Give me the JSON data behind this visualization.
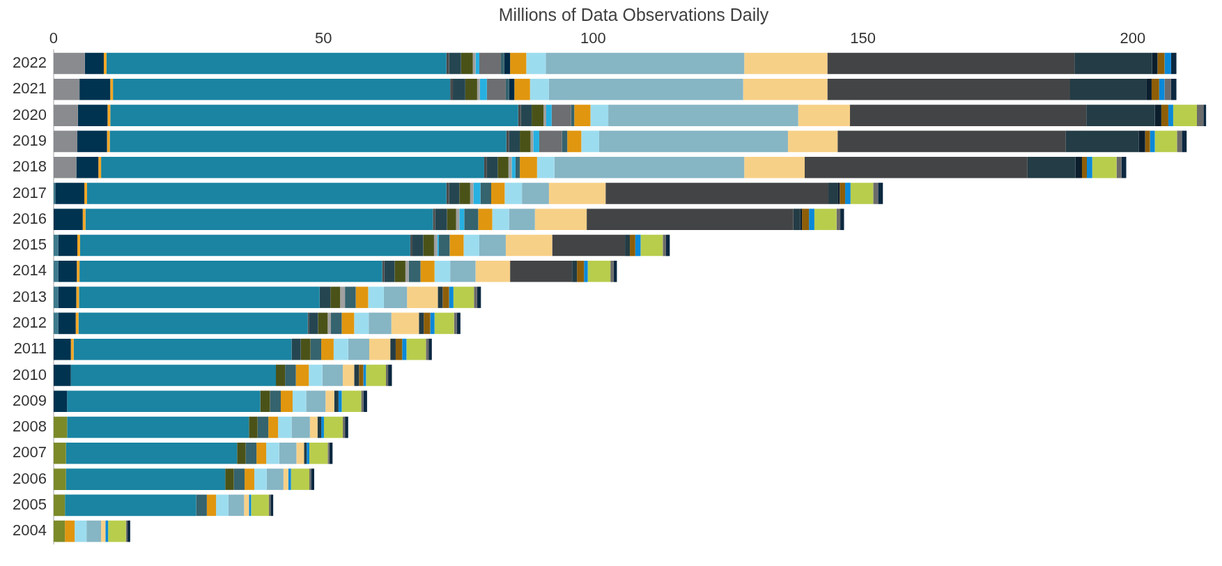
{
  "chart_data": {
    "type": "bar",
    "orientation": "horizontal",
    "stacked": true,
    "grid": false,
    "xlabel": "Millions of Data Observations Daily",
    "categories": [
      "2022",
      "2021",
      "2020",
      "2019",
      "2018",
      "2017",
      "2016",
      "2015",
      "2014",
      "2013",
      "2012",
      "2011",
      "2010",
      "2009",
      "2008",
      "2007",
      "2006",
      "2005",
      "2004"
    ],
    "xlim": [
      0,
      215
    ],
    "xticks": [
      0,
      50,
      100,
      150,
      200
    ],
    "series": [
      {
        "color": "#3f7a8c",
        "values": [
          null,
          null,
          null,
          null,
          null,
          0.3,
          null,
          0.9,
          0.9,
          0.9,
          0.9,
          null,
          null,
          null,
          null,
          null,
          null,
          null,
          null
        ]
      },
      {
        "color": "#7c8a2a",
        "values": [
          null,
          null,
          null,
          null,
          null,
          null,
          null,
          null,
          null,
          null,
          null,
          null,
          null,
          null,
          2.5,
          2.3,
          2.3,
          2.1,
          2.1
        ]
      },
      {
        "color": "#8a8b8f",
        "values": [
          5.8,
          4.8,
          4.5,
          4.4,
          4.2,
          null,
          null,
          null,
          null,
          null,
          null,
          null,
          null,
          null,
          null,
          null,
          null,
          null,
          null
        ]
      },
      {
        "color": "#003350",
        "values": [
          3.5,
          5.7,
          5.5,
          5.5,
          4.1,
          5.4,
          5.4,
          3.5,
          3.4,
          3.3,
          3.2,
          3.2,
          3.2,
          2.5,
          null,
          null,
          null,
          null,
          null
        ]
      },
      {
        "color": "#f5a623",
        "values": [
          0.5,
          0.5,
          0.5,
          0.5,
          0.5,
          0.5,
          0.5,
          0.5,
          0.5,
          0.5,
          0.5,
          0.5,
          null,
          null,
          null,
          null,
          null,
          null,
          null
        ]
      },
      {
        "color": "#1a84a2",
        "values": [
          63,
          62.5,
          75.6,
          73.5,
          71,
          66.6,
          64.4,
          61.2,
          56.1,
          44.6,
          42.5,
          40.4,
          38,
          35.8,
          33.7,
          31.7,
          29.5,
          24.3,
          null
        ]
      },
      {
        "color": "#4a4a4a",
        "values": [
          0.5,
          0.5,
          0.5,
          0.5,
          0.5,
          0.5,
          0.4,
          0.4,
          0.4,
          null,
          0.2,
          null,
          null,
          null,
          null,
          null,
          null,
          null,
          null
        ]
      },
      {
        "color": "#254651",
        "values": [
          2.2,
          2.3,
          2,
          2,
          2,
          1.9,
          2.2,
          2,
          1.9,
          2,
          1.7,
          1.7,
          null,
          null,
          null,
          null,
          null,
          null,
          null
        ]
      },
      {
        "color": "#4a5218",
        "values": [
          2.2,
          2.2,
          2.2,
          2,
          2,
          2,
          1.7,
          2,
          2,
          1.8,
          1.8,
          1.8,
          1.7,
          1.8,
          1.6,
          1.6,
          1.6,
          null,
          null
        ]
      },
      {
        "color": "#a0a0a0",
        "values": [
          0.5,
          0.5,
          0.5,
          0.5,
          0.6,
          0.6,
          0.6,
          0.6,
          0.6,
          0.9,
          0.6,
          null,
          null,
          null,
          null,
          null,
          null,
          null,
          null
        ]
      },
      {
        "color": "#27b0e0",
        "values": [
          0.7,
          1.3,
          1,
          1.1,
          0.7,
          1.3,
          0.9,
          0.3,
          null,
          null,
          null,
          null,
          null,
          null,
          null,
          null,
          null,
          null,
          null
        ]
      },
      {
        "color": "#6d6e71",
        "values": [
          4,
          3.5,
          3.6,
          4.2,
          null,
          null,
          null,
          null,
          null,
          null,
          null,
          null,
          null,
          null,
          null,
          null,
          null,
          null,
          null
        ]
      },
      {
        "color": "#35636e",
        "values": [
          0.6,
          0.6,
          0.6,
          1,
          0.8,
          2,
          2.6,
          2,
          2.2,
          2,
          2,
          2,
          2,
          2,
          2,
          2,
          2,
          2,
          null
        ]
      },
      {
        "color": "#002a45",
        "values": [
          1.1,
          1,
          null,
          null,
          null,
          null,
          null,
          null,
          null,
          null,
          null,
          null,
          null,
          null,
          null,
          null,
          null,
          null,
          null
        ]
      },
      {
        "color": "#e0960f",
        "values": [
          3,
          2.9,
          3,
          2.6,
          3.2,
          2.5,
          2.6,
          2.6,
          2.6,
          2.3,
          2.3,
          2.3,
          2.4,
          2.2,
          1.8,
          1.8,
          1.8,
          1.7,
          1.8
        ]
      },
      {
        "color": "#9cdcef",
        "values": [
          3.6,
          3.5,
          3.3,
          3.3,
          3.2,
          3.2,
          3.1,
          2.9,
          2.9,
          2.9,
          2.7,
          2.7,
          2.5,
          2.5,
          2.5,
          2.4,
          2.3,
          2.3,
          2.2
        ]
      },
      {
        "color": "#86b5c4",
        "values": [
          36.8,
          36,
          35.2,
          35,
          35.2,
          5,
          4.8,
          4.9,
          4.7,
          4.3,
          4.2,
          3.9,
          3.8,
          3.6,
          3.4,
          3.2,
          3.1,
          2.9,
          2.7
        ]
      },
      {
        "color": "#f7d087",
        "values": [
          15.4,
          15.6,
          9.6,
          9.2,
          11.2,
          10.5,
          9.6,
          8.6,
          6.4,
          5.7,
          5.1,
          3.9,
          2.1,
          1.6,
          1.4,
          1.4,
          0.9,
          0.9,
          0.8
        ]
      },
      {
        "color": "#434446",
        "values": [
          45.8,
          45,
          43.8,
          42.3,
          41.3,
          41.3,
          38.3,
          13.5,
          11.5,
          null,
          null,
          null,
          null,
          null,
          null,
          null,
          null,
          null,
          null
        ]
      },
      {
        "color": "#233c45",
        "values": [
          14.4,
          14.1,
          12.7,
          13.5,
          8.9,
          1.7,
          1.3,
          0.9,
          0.9,
          0.9,
          0.9,
          1,
          0.9,
          0.8,
          0.7,
          0.5,
          null,
          null,
          null
        ]
      },
      {
        "color": "#0b1e2d",
        "values": [
          1,
          1,
          1.2,
          1.2,
          1.2,
          0.4,
          0.3,
          null,
          null,
          null,
          null,
          null,
          null,
          null,
          null,
          null,
          null,
          null,
          null
        ]
      },
      {
        "color": "#8e5e08",
        "values": [
          1.3,
          1.4,
          1.3,
          0.9,
          0.9,
          1,
          1.3,
          1,
          1.3,
          1.2,
          1.2,
          1.2,
          0.8,
          null,
          null,
          null,
          null,
          null,
          null
        ]
      },
      {
        "color": "#0a88d8",
        "values": [
          1.2,
          1,
          0.9,
          0.9,
          1,
          1,
          1,
          1,
          0.7,
          0.8,
          0.8,
          0.8,
          0.5,
          0.6,
          0.5,
          0.5,
          0.5,
          0.4,
          0.5
        ]
      },
      {
        "color": "#b8cd4c",
        "values": [
          null,
          null,
          4.4,
          4.1,
          4.5,
          4.2,
          4.1,
          4.1,
          4.2,
          3.8,
          3.6,
          3.6,
          3.7,
          3.6,
          3.5,
          3.4,
          3.4,
          3.3,
          3.3
        ]
      },
      {
        "color": "#6b6b6b",
        "values": [
          null,
          1.2,
          1.2,
          0.9,
          0.9,
          0.9,
          0.7,
          0.6,
          0.6,
          0.6,
          0.5,
          0.5,
          0.4,
          0.4,
          0.4,
          0.3,
          0.3,
          0.3,
          0.3
        ]
      },
      {
        "color": "#0c2840",
        "values": [
          1,
          1,
          0.5,
          0.9,
          0.9,
          0.9,
          0.7,
          0.7,
          0.6,
          0.7,
          0.7,
          0.6,
          0.7,
          0.7,
          0.6,
          0.6,
          0.6,
          0.5,
          0.5
        ]
      }
    ]
  }
}
